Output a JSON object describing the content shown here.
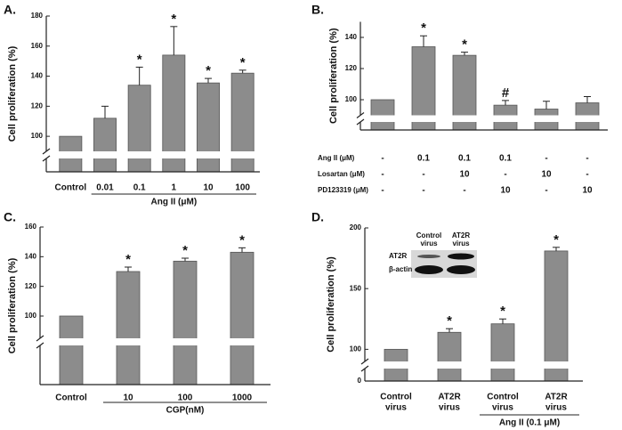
{
  "chart_data": [
    {
      "type": "bar",
      "panel": "A.",
      "ylabel": "Cell proliferation (%)",
      "xlabel": "Ang II (μM)",
      "categories": [
        [
          "Control"
        ],
        [
          "0.01"
        ],
        [
          "0.1"
        ],
        [
          "1"
        ],
        [
          "10"
        ],
        [
          "100"
        ]
      ],
      "values": [
        100,
        112,
        134,
        154,
        135.5,
        142
      ],
      "errors": [
        0,
        8,
        12,
        19,
        3,
        2
      ],
      "annotations": [
        null,
        null,
        "*",
        "*",
        "*",
        "*"
      ],
      "ylim": [
        0,
        180
      ],
      "ybreak": [
        10,
        90
      ],
      "yticks": [
        100,
        120,
        140,
        160,
        180
      ],
      "color": "#8c8c8c"
    },
    {
      "type": "bar",
      "panel": "B.",
      "ylabel": "Cell proliferation (%)",
      "rows": [
        {
          "label": "Ang II (μM)",
          "values": [
            "-",
            "0.1",
            "0.1",
            "0.1",
            "-",
            "-"
          ]
        },
        {
          "label": "Losartan (μM)",
          "values": [
            "-",
            "-",
            "10",
            "-",
            "10",
            "-"
          ]
        },
        {
          "label": "PD123319 (μM)",
          "values": [
            "-",
            "-",
            "-",
            "10",
            "-",
            "10"
          ]
        }
      ],
      "values": [
        100,
        134,
        128.5,
        96.5,
        94,
        98
      ],
      "errors": [
        0,
        7,
        2,
        3,
        5,
        4
      ],
      "annotations": [
        null,
        "*",
        "*",
        "#",
        null,
        null
      ],
      "ylim": [
        0,
        150
      ],
      "ybreak": [
        10,
        90
      ],
      "yticks": [
        100,
        120,
        140
      ],
      "color": "#8c8c8c"
    },
    {
      "type": "bar",
      "panel": "C.",
      "ylabel": "Cell proliferation (%)",
      "xlabel": "CGP(nM)",
      "categories": [
        [
          "Control"
        ],
        [
          "10"
        ],
        [
          "100"
        ],
        [
          "1000"
        ]
      ],
      "values": [
        100,
        130,
        137,
        143
      ],
      "errors": [
        0,
        3,
        2,
        3
      ],
      "annotations": [
        null,
        "*",
        "*",
        "*"
      ],
      "ylim": [
        0,
        160
      ],
      "ybreak": [
        20,
        85
      ],
      "yticks": [
        100,
        120,
        140,
        160
      ],
      "color": "#8c8c8c"
    },
    {
      "type": "bar",
      "panel": "D.",
      "ylabel": "Cell proliferation (%)",
      "xlabel": "Ang II (0.1 μM)",
      "categories": [
        [
          "Control",
          "virus"
        ],
        [
          "AT2R",
          "virus"
        ],
        [
          "Control",
          "virus"
        ],
        [
          "AT2R",
          "virus"
        ]
      ],
      "values": [
        100,
        114,
        121,
        181
      ],
      "errors": [
        0,
        3,
        4,
        3
      ],
      "annotations": [
        null,
        "*",
        "*",
        "*"
      ],
      "ylim": [
        0,
        200
      ],
      "ybreak": [
        10,
        90
      ],
      "yticks": [
        0,
        100,
        150,
        200
      ],
      "color": "#8c8c8c",
      "inset": {
        "columns": [
          [
            "Control",
            "virus"
          ],
          [
            "AT2R",
            "virus"
          ]
        ],
        "rows": [
          "AT2R",
          "β-actin"
        ]
      }
    }
  ]
}
